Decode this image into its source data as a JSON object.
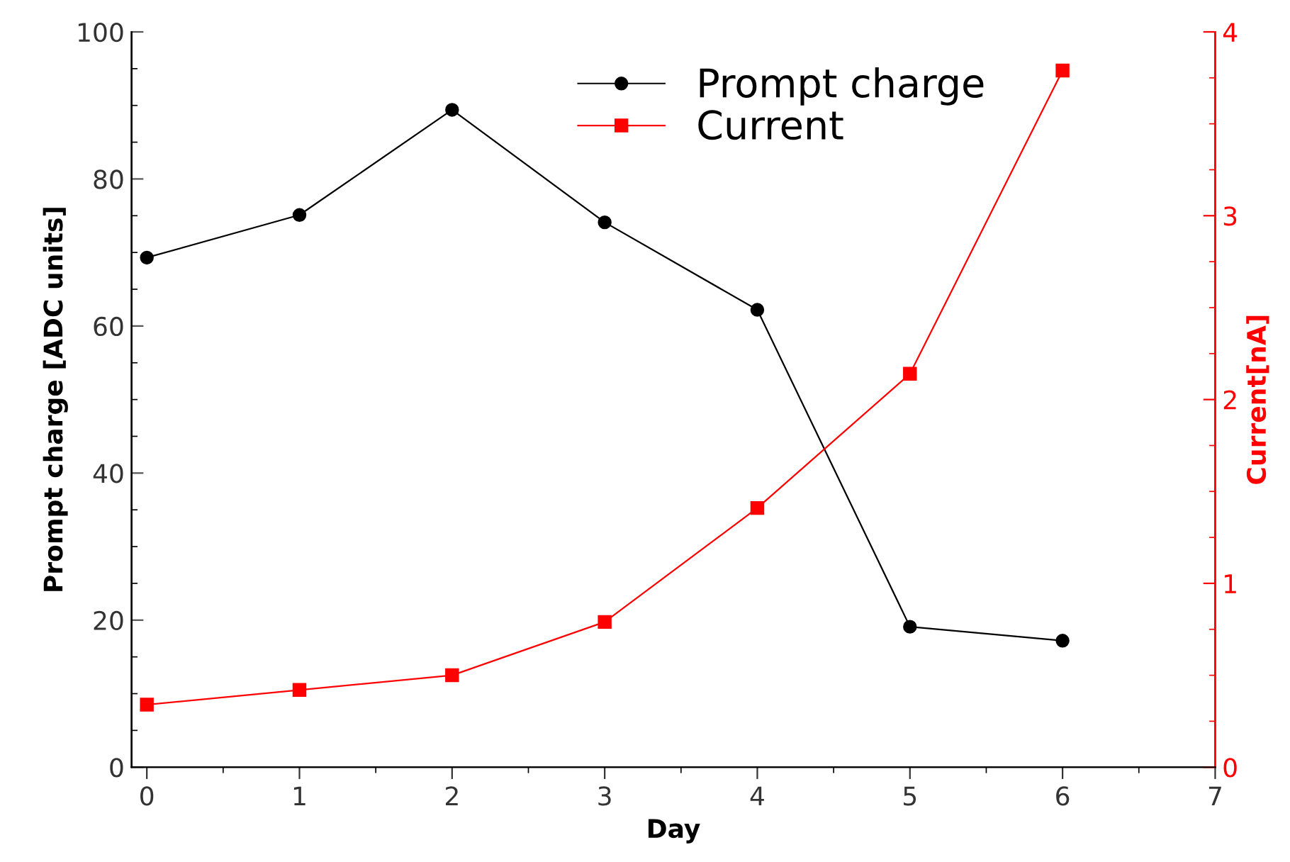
{
  "chart_data": {
    "type": "line",
    "xlabel": "Day",
    "ylabel": "Prompt charge [ADC units]",
    "y2label": "Current[nA]",
    "x": [
      0,
      1,
      2,
      3,
      4,
      5,
      6
    ],
    "series": [
      {
        "name": "Prompt charge",
        "color": "#000000",
        "marker": "circle",
        "values": [
          69.3,
          75.1,
          89.4,
          74.1,
          62.2,
          19.1,
          17.2
        ]
      },
      {
        "name": "Current",
        "color": "#ff0000",
        "marker": "square",
        "axis": "y2",
        "values": [
          0.34,
          0.42,
          0.5,
          0.79,
          1.41,
          2.14,
          3.79
        ]
      }
    ],
    "xlim": [
      -0.1,
      7
    ],
    "xticks": [
      0,
      1,
      2,
      3,
      4,
      5,
      6,
      7
    ],
    "ylim": [
      0,
      100
    ],
    "yticks": [
      0,
      20,
      40,
      60,
      80,
      100
    ],
    "y2lim": [
      0,
      4
    ],
    "y2ticks": [
      0,
      1,
      2,
      3,
      4
    ],
    "grid": false,
    "legend": "top",
    "line_style": "solid"
  }
}
